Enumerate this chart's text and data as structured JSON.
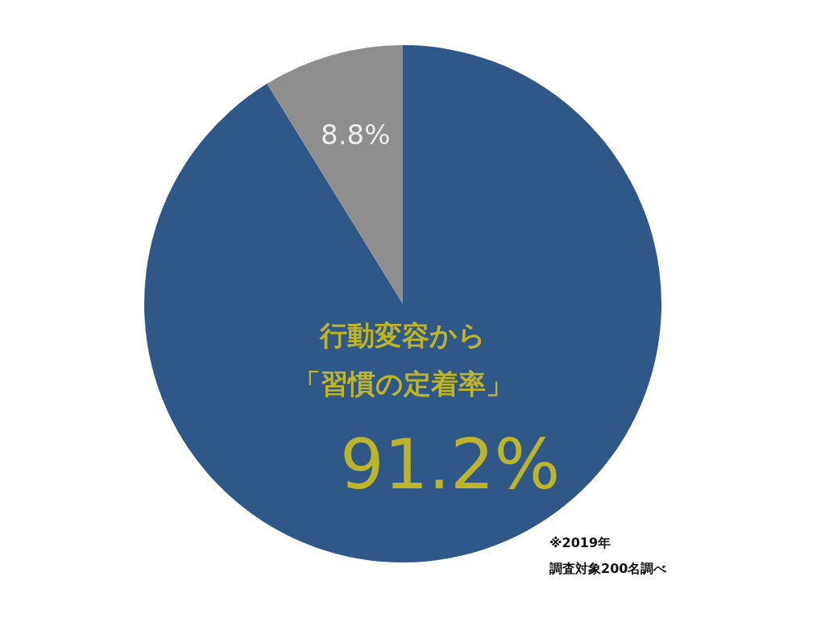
{
  "chart_data": {
    "type": "pie",
    "categories": [
      null,
      null
    ],
    "values": [
      91.2,
      8.8
    ],
    "colors": [
      "#2f5888",
      "#8e8e8e"
    ],
    "value_labels": [
      "91.2%",
      "8.8%"
    ],
    "annotations": [
      "行動変容から",
      "「習慣の定着率」",
      "※2019年",
      "調査対象200名調べ"
    ],
    "legend": false
  }
}
